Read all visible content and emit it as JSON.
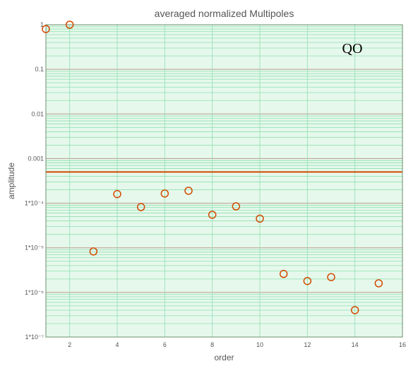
{
  "chart_data": {
    "type": "scatter",
    "title": "averaged normalized Multipoles",
    "xlabel": "order",
    "ylabel": "amplitude",
    "annotation": "QO",
    "xlim": [
      1,
      16
    ],
    "ylim": [
      1e-07,
      1
    ],
    "y_scale": "log",
    "x_ticks": [
      2,
      4,
      6,
      8,
      10,
      12,
      14,
      16
    ],
    "y_tick_labels": [
      "1",
      "0.1",
      "0.01",
      "0.001",
      "1*10⁻⁴",
      "1*10⁻⁵",
      "1*10⁻⁶",
      "1*10⁻⁷"
    ],
    "grid": true,
    "reference_line": {
      "y": 0.0005,
      "color": "#d24a00"
    },
    "colors": {
      "plot_bg": "#e6f8ec",
      "minor_grid": "#8fe0b0",
      "major_grid": "#b89a8c",
      "marker": "#d24a00",
      "text": "#555555"
    },
    "series": [
      {
        "x": [
          1,
          2,
          3,
          4,
          5,
          6,
          7,
          8,
          9,
          10,
          11,
          12,
          13,
          14,
          15
        ],
        "y": [
          0.8,
          1.0,
          8.3e-06,
          0.00016,
          8.2e-05,
          0.000165,
          0.00019,
          5.5e-05,
          8.5e-05,
          4.5e-05,
          2.6e-06,
          1.8e-06,
          2.2e-06,
          4e-07,
          1.6e-06
        ]
      }
    ]
  }
}
